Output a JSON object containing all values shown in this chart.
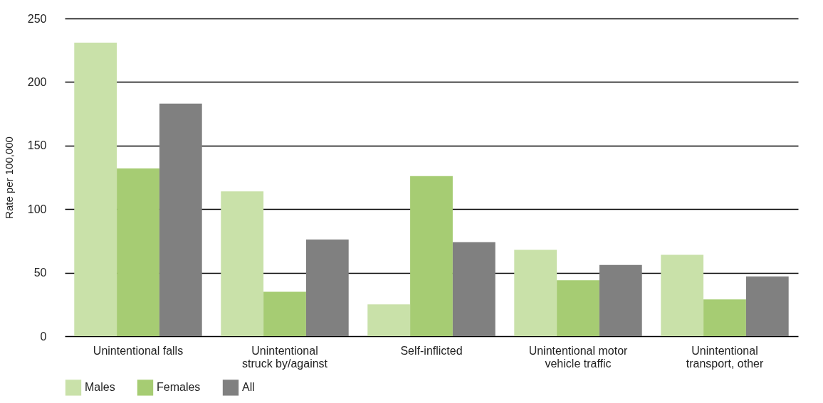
{
  "chart_data": {
    "type": "bar",
    "ylabel": "Rate per 100,000",
    "categories": [
      "Unintentional falls",
      "Unintentional struck by/against",
      "Self-inflicted",
      "Unintentional motor vehicle traffic",
      "Unintentional transport, other"
    ],
    "series": [
      {
        "name": "Males",
        "color": "#c9e1a9",
        "values": [
          231,
          114,
          25,
          68,
          64
        ]
      },
      {
        "name": "Females",
        "color": "#a6cc73",
        "values": [
          132,
          35,
          126,
          44,
          29
        ]
      },
      {
        "name": "All",
        "color": "#808080",
        "values": [
          183,
          76,
          74,
          56,
          47
        ]
      }
    ],
    "ylim": [
      0,
      250
    ],
    "yticks": [
      0,
      50,
      100,
      150,
      200,
      250
    ],
    "grid": "y",
    "legend": "bottom"
  }
}
